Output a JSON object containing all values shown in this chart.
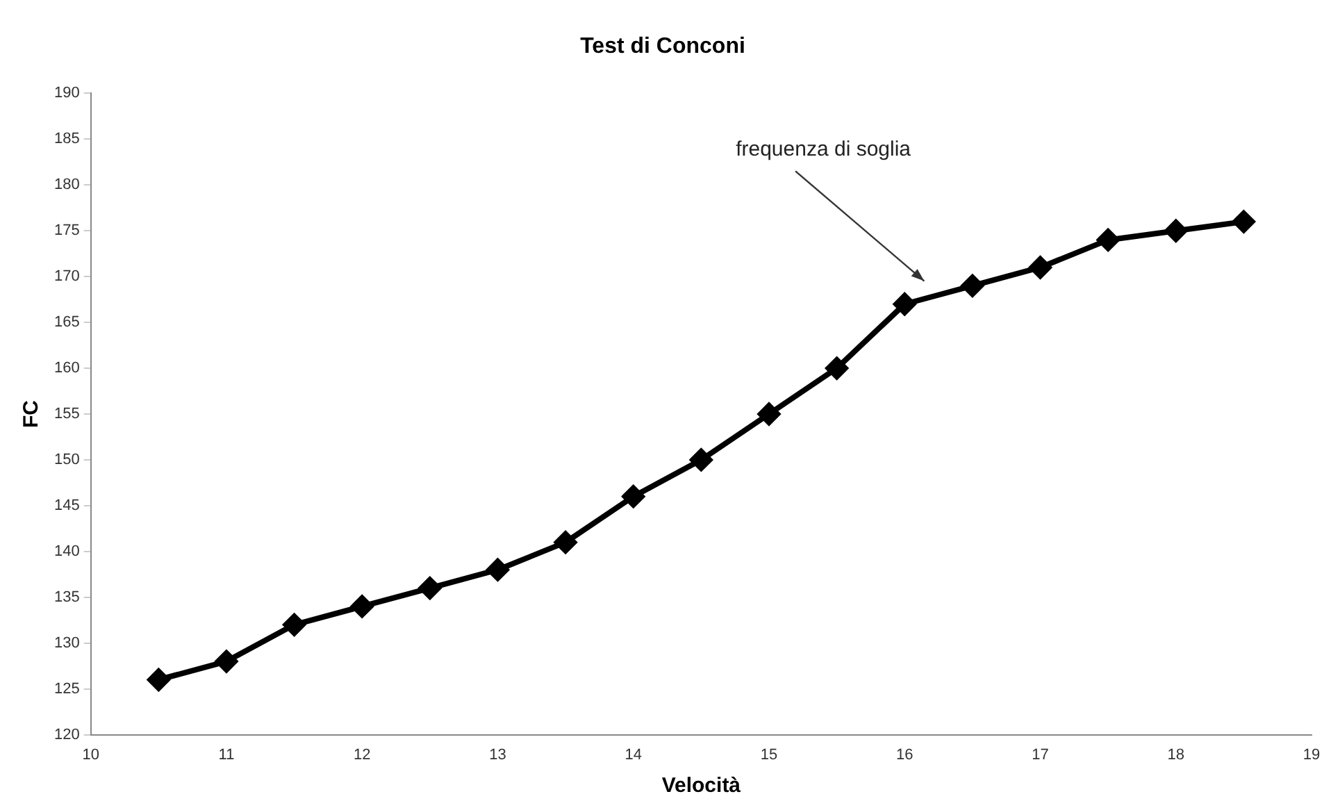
{
  "chart_data": {
    "type": "line",
    "title": "Test di Conconi",
    "xlabel": "Velocità",
    "ylabel": "FC",
    "x": [
      10.5,
      11,
      11.5,
      12,
      12.5,
      13,
      13.5,
      14,
      14.5,
      15,
      15.5,
      16,
      16.5,
      17,
      17.5,
      18,
      18.5
    ],
    "series": [
      {
        "color": "#000000",
        "values": [
          126,
          128,
          132,
          134,
          136,
          138,
          141,
          146,
          150,
          155,
          160,
          167,
          169,
          171,
          174,
          175,
          176
        ]
      }
    ],
    "xlim": [
      10,
      19
    ],
    "xticks": [
      10,
      11,
      12,
      13,
      14,
      15,
      16,
      17,
      18,
      19
    ],
    "ylim": [
      120,
      190
    ],
    "yticks": [
      120,
      125,
      130,
      135,
      140,
      145,
      150,
      155,
      160,
      165,
      170,
      175,
      180,
      185,
      190
    ],
    "annotations": [
      "frequenza di soglia"
    ],
    "grid": false,
    "legend": false,
    "marker": "diamond",
    "line_style": "solid"
  }
}
